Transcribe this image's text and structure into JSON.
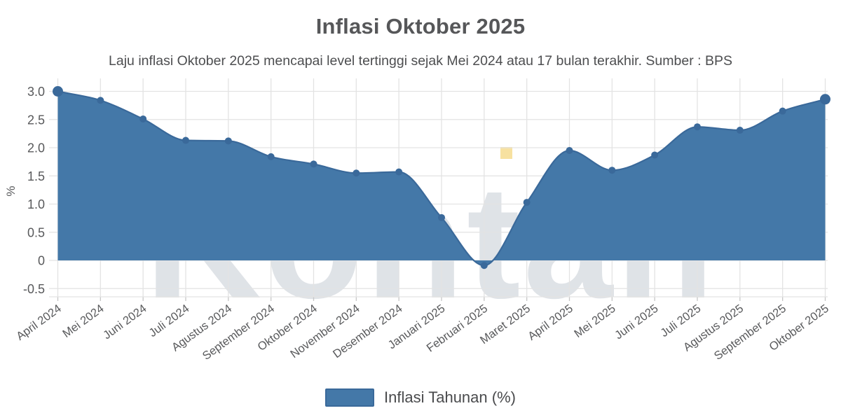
{
  "header": {
    "title": "Inflasi Oktober 2025",
    "subtitle": "Laju inflasi Oktober 2025 mencapai level tertinggi sejak Mei 2024 atau 17 bulan terakhir. Sumber : BPS"
  },
  "watermark": {
    "text": "Kontan"
  },
  "chart_data": {
    "type": "area",
    "title": "Inflasi Oktober 2025",
    "categories": [
      "April 2024",
      "Mei 2024",
      "Juni 2024",
      "Juli 2024",
      "Agustus 2024",
      "September 2024",
      "Oktober 2024",
      "November 2024",
      "Desember 2024",
      "Januari 2025",
      "Februari 2025",
      "Maret 2025",
      "April 2025",
      "Mei 2025",
      "Juni 2025",
      "Juli 2025",
      "Agustus 2025",
      "September 2025",
      "Oktober 2025"
    ],
    "series": [
      {
        "name": "Inflasi Tahunan (%)",
        "values": [
          3.0,
          2.84,
          2.51,
          2.13,
          2.12,
          1.84,
          1.71,
          1.55,
          1.57,
          0.76,
          -0.09,
          1.03,
          1.95,
          1.6,
          1.87,
          2.37,
          2.31,
          2.65,
          2.86
        ]
      }
    ],
    "xlabel": "",
    "ylabel": "%",
    "y_ticks": [
      {
        "label": "3.0",
        "value": 3.0
      },
      {
        "label": "2.5",
        "value": 2.5
      },
      {
        "label": "2.0",
        "value": 2.0
      },
      {
        "label": "1.5",
        "value": 1.5
      },
      {
        "label": "1.0",
        "value": 1.0
      },
      {
        "label": "0.5",
        "value": 0.5
      },
      {
        "label": "0",
        "value": 0
      },
      {
        "label": "-0.5",
        "value": -0.5
      }
    ],
    "ylim": [
      -0.72,
      3.23
    ],
    "x_tick_rotation": -36,
    "grid": true,
    "legend_position": "bottom",
    "colors": {
      "area_fill": "#4478a8",
      "line": "#3a699a",
      "point": "#3a699a",
      "grid": "#e3e3e3",
      "tick_mark": "#c6c6c6",
      "axis_text": "#58595b",
      "title_text": "#565759",
      "subtitle_text": "#4d4e50",
      "legend_text": "#4a4b4d",
      "watermark_text": "#aeb6c2",
      "watermark_square": "#f6de96"
    }
  }
}
